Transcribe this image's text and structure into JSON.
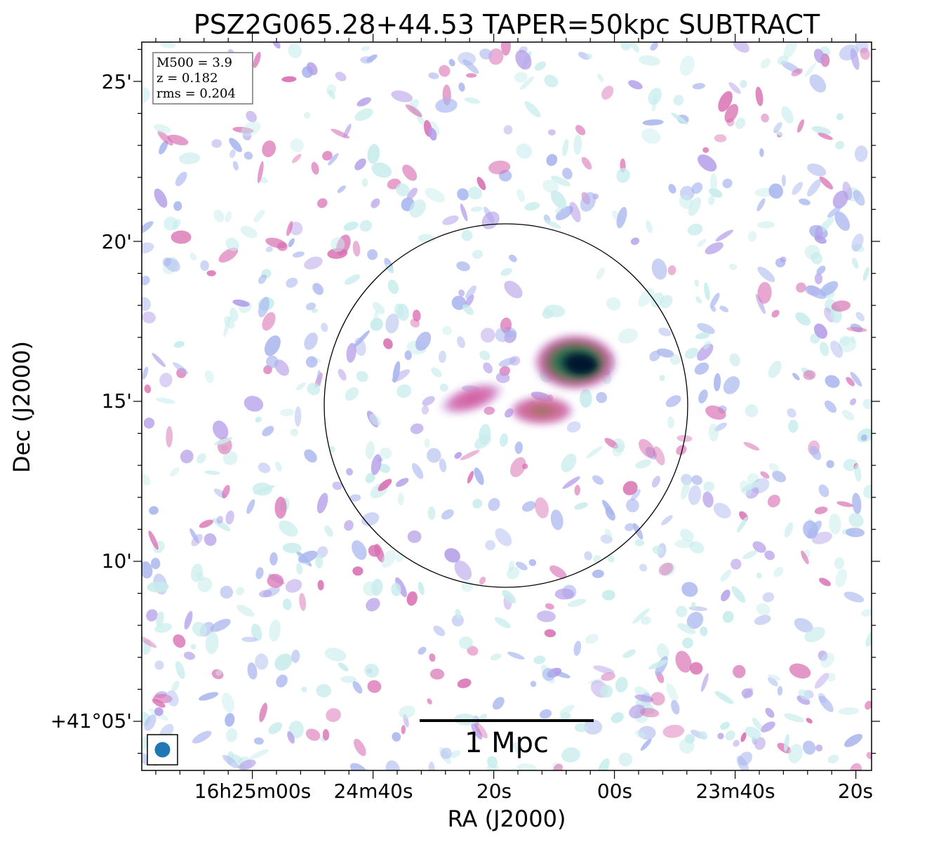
{
  "title": "PSZ2G065.28+44.53 TAPER=50kpc SUBTRACT",
  "axes": {
    "xlabel": "RA (J2000)",
    "ylabel": "Dec (J2000)",
    "x_ticks": [
      "16h25m00s",
      "24m40s",
      "20s",
      "00s",
      "23m40s",
      "20s"
    ],
    "y_ticks": [
      "25'",
      "20'",
      "15'",
      "10'",
      "+41°05'"
    ]
  },
  "info_box": {
    "mass": "M500 = 3.9",
    "redshift": "z = 0.182",
    "rms": "rms = 0.204"
  },
  "scale_bar": {
    "label": "1 Mpc"
  },
  "colors": {
    "beam": "#1f77b4",
    "background": "#ffffff",
    "noise_light": "#c8ecec",
    "noise_mid": "#a9b6ee",
    "noise_violet": "#b39ce8",
    "noise_pink": "#d86fb2",
    "source_green": "#1f7a55",
    "source_core": "#0b1a3a"
  },
  "icons": {
    "beam": "beam-ellipse-icon"
  }
}
